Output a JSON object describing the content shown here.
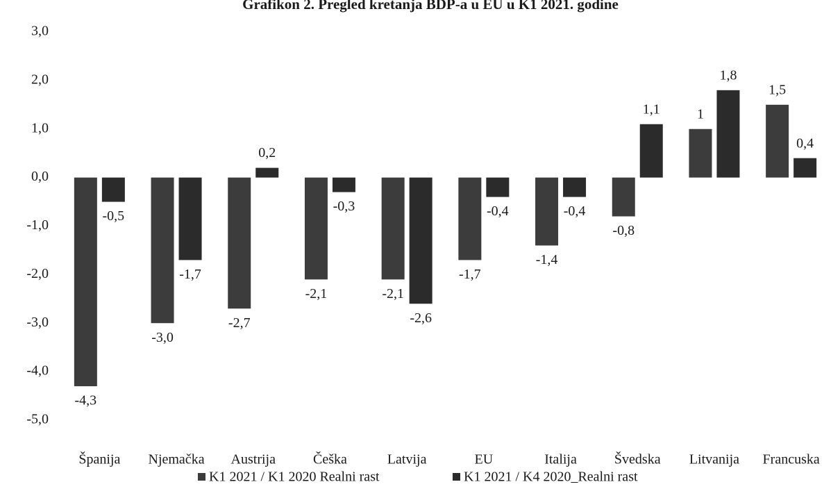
{
  "chart_data": {
    "type": "bar",
    "title": "Grafikon 2. Pregled kretanja BDP-a u EU u K1 2021. godine",
    "categories": [
      "Španija",
      "Njemačka",
      "Austrija",
      "Češka",
      "Latvija",
      "EU",
      "Italija",
      "Švedska",
      "Litvanija",
      "Francuska"
    ],
    "series": [
      {
        "name": "K1 2021 / K1 2020 Realni rast",
        "color": "#3c3c3c",
        "values": [
          -4.3,
          -3.0,
          -2.7,
          -2.1,
          -2.1,
          -1.7,
          -1.4,
          -0.8,
          1,
          1.5
        ],
        "value_labels": [
          "-4,3",
          "-3,0",
          "-2,7",
          "-2,1",
          "-2,1",
          "-1,7",
          "-1,4",
          "-0,8",
          "1",
          "1,5"
        ]
      },
      {
        "name": "K1 2021 / K4 2020_Realni rast",
        "color": "#2b2b2b",
        "values": [
          -0.5,
          -1.7,
          0.2,
          -0.3,
          -2.6,
          -0.4,
          -0.4,
          1.1,
          1.8,
          0.4
        ],
        "value_labels": [
          "-0,5",
          "-1,7",
          "0,2",
          "-0,3",
          "-2,6",
          "-0,4",
          "-0,4",
          "1,1",
          "1,8",
          "0,4"
        ]
      }
    ],
    "ylim": [
      -5,
      3
    ],
    "yticks": [
      {
        "value": 3,
        "label": "3,0"
      },
      {
        "value": 2,
        "label": "2,0"
      },
      {
        "value": 1,
        "label": "1,0"
      },
      {
        "value": 0,
        "label": "0,0"
      },
      {
        "value": -1,
        "label": "-1,0"
      },
      {
        "value": -2,
        "label": "-2,0"
      },
      {
        "value": -3,
        "label": "-3,0"
      },
      {
        "value": -4,
        "label": "-4,0"
      },
      {
        "value": -5,
        "label": "-5,0"
      }
    ],
    "grid": false,
    "legend": "bottom"
  }
}
